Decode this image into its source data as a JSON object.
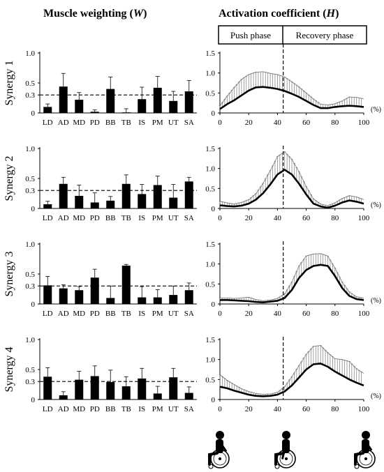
{
  "headers": {
    "left": "Muscle weighting (",
    "left_symbol": "W",
    "right": "Activation coefficient (",
    "right_symbol": "H",
    "close": ")"
  },
  "phases": {
    "push": "Push phase",
    "recovery": "Recovery phase",
    "boundary_percent": 44
  },
  "x_unit": "(%)",
  "colors": {
    "bar": "#000000",
    "curve": "#000000",
    "sd": "#7a7a7a",
    "ref": "#000000"
  },
  "icons": [
    "wheelchair-push-start-icon",
    "wheelchair-push-end-icon",
    "wheelchair-recovery-end-icon"
  ],
  "chart_data": [
    {
      "type": "bar",
      "ylabel": "Synergy 1",
      "categories": [
        "LD",
        "AD",
        "MD",
        "PD",
        "BB",
        "TB",
        "IS",
        "PM",
        "UT",
        "SA"
      ],
      "values": [
        0.1,
        0.44,
        0.22,
        0.02,
        0.4,
        0.01,
        0.23,
        0.42,
        0.2,
        0.36
      ],
      "sd": [
        0.05,
        0.22,
        0.12,
        0.03,
        0.2,
        0.06,
        0.2,
        0.19,
        0.16,
        0.18
      ],
      "ylim": [
        0,
        1.0
      ],
      "yticks": [
        "0",
        "0.3",
        "0.5",
        "1.0"
      ],
      "ref_line": 0.3
    },
    {
      "type": "line",
      "ylabel": "Synergy 1",
      "x": [
        0,
        5,
        10,
        15,
        20,
        25,
        30,
        35,
        40,
        45,
        50,
        55,
        60,
        65,
        70,
        75,
        80,
        85,
        90,
        95,
        100
      ],
      "values": [
        0.1,
        0.22,
        0.32,
        0.44,
        0.56,
        0.64,
        0.65,
        0.63,
        0.6,
        0.55,
        0.48,
        0.4,
        0.3,
        0.2,
        0.12,
        0.12,
        0.15,
        0.17,
        0.18,
        0.17,
        0.15
      ],
      "sd": [
        0.08,
        0.2,
        0.32,
        0.4,
        0.4,
        0.38,
        0.38,
        0.36,
        0.36,
        0.35,
        0.3,
        0.25,
        0.2,
        0.15,
        0.1,
        0.08,
        0.08,
        0.13,
        0.22,
        0.22,
        0.2
      ],
      "xlim": [
        0,
        100
      ],
      "ylim": [
        0,
        1.5
      ],
      "xticks": [
        "0",
        "20",
        "40",
        "60",
        "80",
        "100"
      ],
      "yticks": [
        "0",
        "0.5",
        "1.0",
        "1.5"
      ]
    },
    {
      "type": "bar",
      "ylabel": "Synergy 2",
      "categories": [
        "LD",
        "AD",
        "MD",
        "PD",
        "BB",
        "TB",
        "IS",
        "PM",
        "UT",
        "SA"
      ],
      "values": [
        0.07,
        0.41,
        0.21,
        0.1,
        0.13,
        0.41,
        0.24,
        0.39,
        0.18,
        0.45
      ],
      "sd": [
        0.05,
        0.11,
        0.18,
        0.16,
        0.07,
        0.15,
        0.16,
        0.15,
        0.22,
        0.07
      ],
      "ylim": [
        0,
        1.0
      ],
      "yticks": [
        "0",
        "0.3",
        "0.5",
        "1.0"
      ],
      "ref_line": 0.3
    },
    {
      "type": "line",
      "ylabel": "Synergy 2",
      "x": [
        0,
        5,
        10,
        15,
        20,
        25,
        30,
        35,
        40,
        45,
        50,
        55,
        60,
        65,
        70,
        75,
        80,
        85,
        90,
        95,
        100
      ],
      "values": [
        0.08,
        0.06,
        0.05,
        0.07,
        0.12,
        0.22,
        0.38,
        0.6,
        0.85,
        0.97,
        0.85,
        0.62,
        0.35,
        0.12,
        0.05,
        0.02,
        0.07,
        0.15,
        0.2,
        0.17,
        0.12
      ],
      "sd": [
        0.1,
        0.08,
        0.06,
        0.08,
        0.1,
        0.15,
        0.25,
        0.35,
        0.45,
        0.45,
        0.38,
        0.3,
        0.2,
        0.12,
        0.06,
        0.05,
        0.07,
        0.1,
        0.12,
        0.12,
        0.1
      ],
      "xlim": [
        0,
        100
      ],
      "ylim": [
        0,
        1.5
      ],
      "xticks": [
        "0",
        "20",
        "40",
        "60",
        "80",
        "100"
      ],
      "yticks": [
        "0",
        "0.5",
        "1.0",
        "1.5"
      ]
    },
    {
      "type": "bar",
      "ylabel": "Synergy 3",
      "categories": [
        "LD",
        "AD",
        "MD",
        "PD",
        "BB",
        "TB",
        "IS",
        "PM",
        "UT",
        "SA"
      ],
      "values": [
        0.31,
        0.26,
        0.23,
        0.44,
        0.1,
        0.64,
        0.11,
        0.11,
        0.15,
        0.23
      ],
      "sd": [
        0.15,
        0.06,
        0.06,
        0.14,
        0.2,
        0.02,
        0.18,
        0.13,
        0.15,
        0.12
      ],
      "ylim": [
        0,
        1.0
      ],
      "yticks": [
        "0",
        "0.3",
        "0.5",
        "1.0"
      ],
      "ref_line": 0.3
    },
    {
      "type": "line",
      "ylabel": "Synergy 3",
      "x": [
        0,
        5,
        10,
        15,
        20,
        25,
        30,
        35,
        40,
        45,
        50,
        55,
        60,
        65,
        70,
        75,
        80,
        85,
        90,
        95,
        100
      ],
      "values": [
        0.1,
        0.1,
        0.09,
        0.08,
        0.07,
        0.05,
        0.04,
        0.06,
        0.08,
        0.15,
        0.35,
        0.65,
        0.85,
        0.95,
        0.98,
        0.95,
        0.7,
        0.4,
        0.2,
        0.12,
        0.1
      ],
      "sd": [
        0.05,
        0.05,
        0.05,
        0.07,
        0.1,
        0.06,
        0.04,
        0.04,
        0.06,
        0.1,
        0.2,
        0.3,
        0.35,
        0.3,
        0.28,
        0.25,
        0.2,
        0.15,
        0.1,
        0.06,
        0.05
      ],
      "xlim": [
        0,
        100
      ],
      "ylim": [
        0,
        1.5
      ],
      "xticks": [
        "0",
        "20",
        "40",
        "60",
        "80",
        "100"
      ],
      "yticks": [
        "0",
        "0.5",
        "1.0",
        "1.5"
      ]
    },
    {
      "type": "bar",
      "ylabel": "Synergy 4",
      "categories": [
        "LD",
        "AD",
        "MD",
        "PD",
        "BB",
        "TB",
        "IS",
        "PM",
        "UT",
        "SA"
      ],
      "values": [
        0.38,
        0.07,
        0.33,
        0.39,
        0.29,
        0.22,
        0.35,
        0.1,
        0.37,
        0.11
      ],
      "sd": [
        0.15,
        0.06,
        0.14,
        0.17,
        0.2,
        0.16,
        0.17,
        0.12,
        0.15,
        0.1
      ],
      "ylim": [
        0,
        1.0
      ],
      "yticks": [
        "0",
        "0.3",
        "0.5",
        "1.0"
      ],
      "ref_line": 0.3
    },
    {
      "type": "line",
      "ylabel": "Synergy 4",
      "x": [
        0,
        5,
        10,
        15,
        20,
        25,
        30,
        35,
        40,
        45,
        50,
        55,
        60,
        65,
        70,
        75,
        80,
        85,
        90,
        95,
        100
      ],
      "values": [
        0.32,
        0.28,
        0.22,
        0.17,
        0.12,
        0.09,
        0.08,
        0.09,
        0.12,
        0.2,
        0.35,
        0.55,
        0.75,
        0.88,
        0.9,
        0.82,
        0.7,
        0.6,
        0.5,
        0.42,
        0.35
      ],
      "sd": [
        0.3,
        0.2,
        0.15,
        0.1,
        0.08,
        0.06,
        0.05,
        0.05,
        0.06,
        0.12,
        0.22,
        0.3,
        0.38,
        0.45,
        0.45,
        0.35,
        0.32,
        0.4,
        0.45,
        0.35,
        0.3
      ],
      "xlim": [
        0,
        100
      ],
      "ylim": [
        0,
        1.5
      ],
      "xticks": [
        "0",
        "20",
        "40",
        "60",
        "80",
        "100"
      ],
      "yticks": [
        "0",
        "0.5",
        "1.0",
        "1.5"
      ]
    }
  ]
}
